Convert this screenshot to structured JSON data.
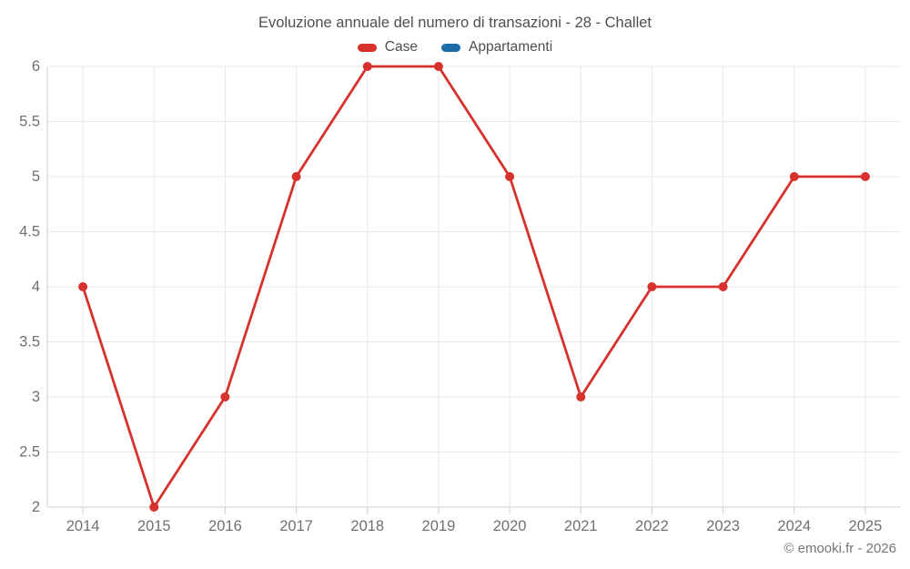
{
  "title": "Evoluzione annuale del numero di transazioni - 28 - Challet",
  "footer": "© emooki.fr - 2026",
  "colors": {
    "grid": "#e9e9e9",
    "axis": "#cfcfcf",
    "tick_text": "#707070",
    "title_text": "#4f4f4f",
    "background": "#ffffff",
    "case_red": "#d7312e",
    "appartamenti_blue": "#1c6ca8"
  },
  "chart_data": {
    "type": "line",
    "title": "Evoluzione annuale del numero di transazioni - 28 - Challet",
    "x": [
      2014,
      2015,
      2016,
      2017,
      2018,
      2019,
      2020,
      2021,
      2022,
      2023,
      2024,
      2025
    ],
    "series": [
      {
        "name": "Case",
        "color": "#d7312e",
        "values": [
          4,
          2,
          3,
          5,
          6,
          6,
          5,
          3,
          4,
          4,
          5,
          5
        ]
      },
      {
        "name": "Appartamenti",
        "color": "#1c6ca8",
        "values": []
      }
    ],
    "xlabel": "",
    "ylabel": "",
    "ylim": [
      2,
      6
    ],
    "ytick_step": 0.5,
    "grid": true,
    "legend_position": "top"
  }
}
